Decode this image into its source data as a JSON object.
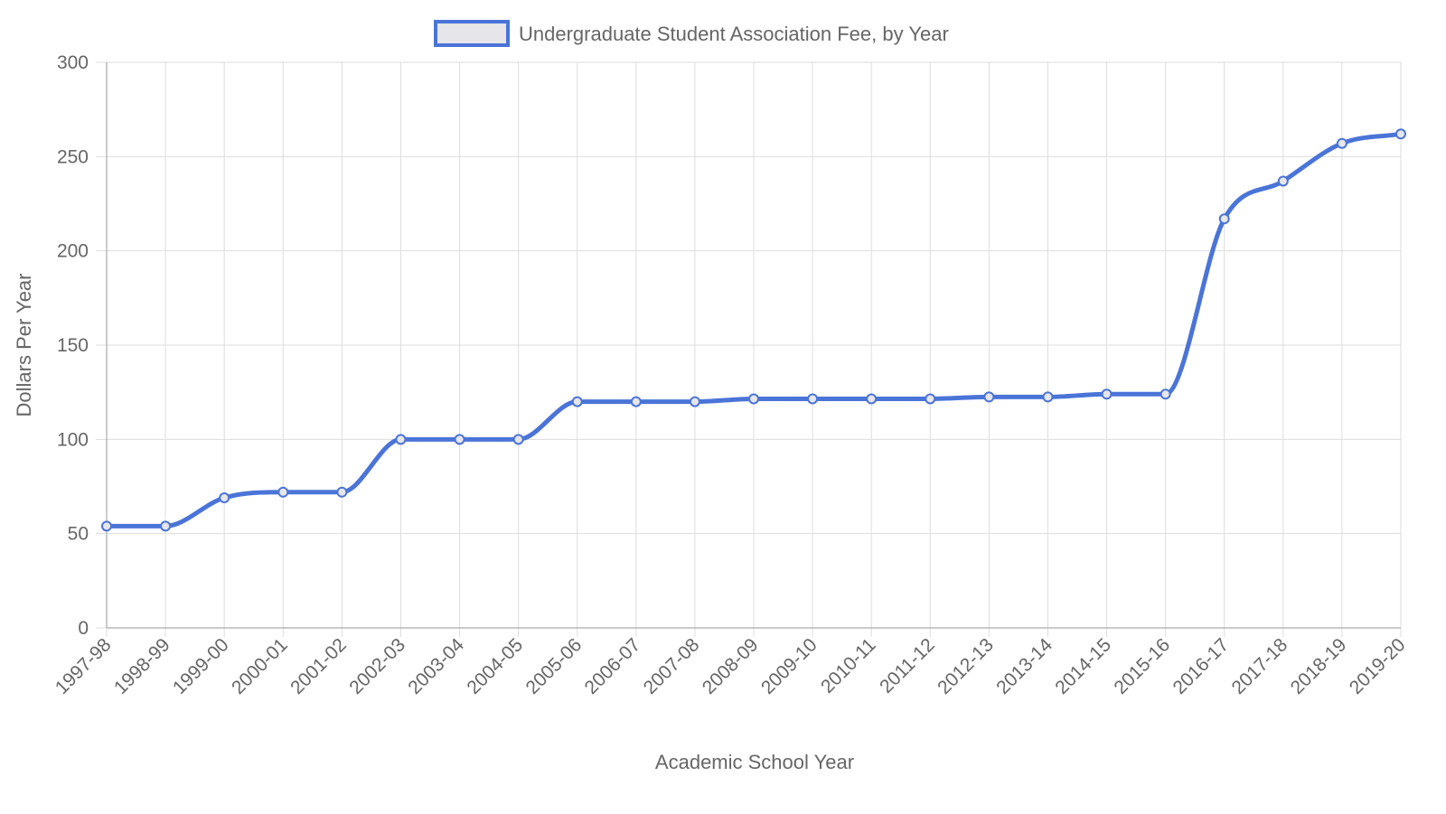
{
  "chart_data": {
    "type": "line",
    "title": "",
    "legend": {
      "position": "top-center",
      "entries": [
        "Undergraduate Student Association Fee, by Year"
      ]
    },
    "xlabel": "Academic School Year",
    "ylabel": "Dollars Per Year",
    "ylim": [
      0,
      300
    ],
    "y_ticks": [
      "0",
      "50",
      "100",
      "150",
      "200",
      "250",
      "300"
    ],
    "grid": true,
    "line_style": "smooth",
    "categories": [
      "1997-98",
      "1998-99",
      "1999-00",
      "2000-01",
      "2001-02",
      "2002-03",
      "2003-04",
      "2004-05",
      "2005-06",
      "2006-07",
      "2007-08",
      "2008-09",
      "2009-10",
      "2010-11",
      "2011-12",
      "2012-13",
      "2013-14",
      "2014-15",
      "2015-16",
      "2016-17",
      "2017-18",
      "2018-19",
      "2019-20"
    ],
    "series": [
      {
        "name": "Undergraduate Student Association Fee, by Year",
        "color": "#4a74d8",
        "fill": "#e6e6ea",
        "values": [
          54,
          54,
          69,
          72,
          72,
          100,
          100,
          100,
          120,
          120,
          120,
          121.5,
          121.5,
          121.5,
          121.5,
          122.5,
          122.5,
          124,
          124,
          217,
          237,
          257,
          262
        ]
      }
    ]
  }
}
